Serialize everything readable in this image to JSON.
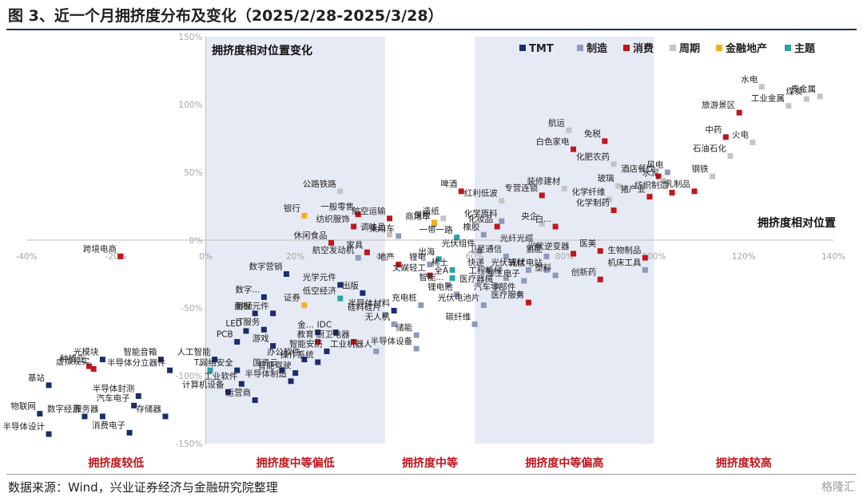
{
  "title": "图 3、近一个月拥挤度分布及变化（2025/2/28-2025/3/28）",
  "source": "数据来源：Wind，兴业证券经济与金融研究院整理",
  "watermark": "格隆汇",
  "chart_data": {
    "type": "scatter",
    "title": "拥挤度相对位置变化",
    "xlabel": "拥挤度相对位置",
    "ylabel": "",
    "xlim": [
      -40,
      140
    ],
    "ylim": [
      -150,
      150
    ],
    "x_ticks": [
      "-40%",
      "-20%",
      "0%",
      "20%",
      "40%",
      "60%",
      "80%",
      "100%",
      "120%",
      "140%"
    ],
    "y_ticks": [
      "150%",
      "100%",
      "50%",
      "0%",
      "-50%",
      "-100%",
      "-150%"
    ],
    "zones": [
      {
        "label": "拥挤度较低",
        "from": -40,
        "to": 0,
        "shade": false
      },
      {
        "label": "拥挤度中等偏低",
        "from": 0,
        "to": 40,
        "shade": true
      },
      {
        "label": "拥挤度中等",
        "from": 40,
        "to": 60,
        "shade": false
      },
      {
        "label": "拥挤度中等偏高",
        "from": 60,
        "to": 100,
        "shade": true
      },
      {
        "label": "拥挤度较高",
        "from": 100,
        "to": 140,
        "shade": false
      }
    ],
    "legend": [
      {
        "name": "TMT",
        "color": "#1b2d6b"
      },
      {
        "name": "制造",
        "color": "#8d9bb8"
      },
      {
        "name": "消费",
        "color": "#c0161d"
      },
      {
        "name": "周期",
        "color": "#c4c4c4"
      },
      {
        "name": "金融地产",
        "color": "#f2b21c"
      },
      {
        "name": "主题",
        "color": "#29a3a3"
      }
    ],
    "series": [
      {
        "name": "TMT",
        "points": [
          {
            "label": "光模块",
            "x": -23,
            "y": -88
          },
          {
            "label": "智能音箱",
            "x": -10,
            "y": -88
          },
          {
            "label": "基站",
            "x": -35,
            "y": -107
          },
          {
            "label": "物联网",
            "x": -37,
            "y": -128
          },
          {
            "label": "数字经济",
            "x": -27,
            "y": -130
          },
          {
            "label": "半导体设计",
            "x": -35,
            "y": -143
          },
          {
            "label": "汽车电子",
            "x": -16,
            "y": -122
          },
          {
            "label": "半导体封测",
            "x": -15,
            "y": -115
          },
          {
            "label": "服务器",
            "x": -23,
            "y": -130
          },
          {
            "label": "存储器",
            "x": -9,
            "y": -130
          },
          {
            "label": "消费电子",
            "x": -17,
            "y": -142
          },
          {
            "label": "半导体分立器件",
            "x": -8,
            "y": -96
          },
          {
            "label": "人工智能",
            "x": 2,
            "y": -88
          },
          {
            "label": "网络安全",
            "x": 7,
            "y": -96
          },
          {
            "label": "工业软件",
            "x": 8,
            "y": -106
          },
          {
            "label": "计算机设备",
            "x": 5,
            "y": -112
          },
          {
            "label": "运营商",
            "x": 11,
            "y": -118
          },
          {
            "label": "数字营销",
            "x": 18,
            "y": -25
          },
          {
            "label": "数字...",
            "x": 13,
            "y": -42
          },
          {
            "label": "面板",
            "x": 11,
            "y": -54
          },
          {
            "label": "射频元件",
            "x": 15,
            "y": -54
          },
          {
            "label": "LED",
            "x": 9,
            "y": -67
          },
          {
            "label": "IT服务",
            "x": 13,
            "y": -66
          },
          {
            "label": "PCB",
            "x": 7,
            "y": -75
          },
          {
            "label": "游戏",
            "x": 15,
            "y": -78
          },
          {
            "label": "办公软件",
            "x": 22,
            "y": -88
          },
          {
            "label": "国资云",
            "x": 17,
            "y": -96
          },
          {
            "label": "智能驾驶",
            "x": 20,
            "y": -98
          },
          {
            "label": "半导体制造",
            "x": 19,
            "y": -104
          },
          {
            "label": "金...",
            "x": 25,
            "y": -68
          },
          {
            "label": "IDC",
            "x": 29,
            "y": -68
          },
          {
            "label": "智能安防",
            "x": 27,
            "y": -82
          },
          {
            "label": "操作系统",
            "x": 25,
            "y": -90
          },
          {
            "label": "出版",
            "x": 35,
            "y": -39
          },
          {
            "label": "光学元件",
            "x": 30,
            "y": -33
          },
          {
            "label": "半导体材料",
            "x": 42,
            "y": -52
          }
        ]
      },
      {
        "name": "制造",
        "points": [
          {
            "label": "乘用车",
            "x": 43,
            "y": 3
          },
          {
            "label": "商用车",
            "x": 51,
            "y": 12
          },
          {
            "label": "航空发动机",
            "x": 34,
            "y": -13
          },
          {
            "label": "锂电",
            "x": 50,
            "y": -18
          },
          {
            "label": "智能...",
            "x": 54,
            "y": -33
          },
          {
            "label": "锂电池",
            "x": 56,
            "y": -40
          },
          {
            "label": "硅料硅片",
            "x": 40,
            "y": -55
          },
          {
            "label": "无人机",
            "x": 42,
            "y": -62
          },
          {
            "label": "充电桩",
            "x": 48,
            "y": -48
          },
          {
            "label": "储能",
            "x": 47,
            "y": -70
          },
          {
            "label": "半导体设备",
            "x": 47,
            "y": -80
          },
          {
            "label": "工业机器人",
            "x": 38,
            "y": -82
          },
          {
            "label": "化学原料",
            "x": 66,
            "y": 14
          },
          {
            "label": "橡胶",
            "x": 62,
            "y": 4
          },
          {
            "label": "光伏组件",
            "x": 61,
            "y": -8
          },
          {
            "label": "卫星通信",
            "x": 67,
            "y": -12
          },
          {
            "label": "氢能",
            "x": 76,
            "y": -12
          },
          {
            "label": "光纤光缆",
            "x": 74,
            "y": -4
          },
          {
            "label": "快递",
            "x": 63,
            "y": -22
          },
          {
            "label": "工程机械",
            "x": 67,
            "y": -28
          },
          {
            "label": "光伏辅材",
            "x": 72,
            "y": -22
          },
          {
            "label": "光伏电站",
            "x": 76,
            "y": -22
          },
          {
            "label": "医疗器械",
            "x": 65,
            "y": -34
          },
          {
            "label": "军工电子",
            "x": 71,
            "y": -30
          },
          {
            "label": "塑料",
            "x": 78,
            "y": -26
          },
          {
            "label": "汽车零部件",
            "x": 70,
            "y": -40
          },
          {
            "label": "光伏电池片",
            "x": 62,
            "y": -48
          },
          {
            "label": "碳纤维",
            "x": 60,
            "y": -62
          },
          {
            "label": "机床工具",
            "x": 98,
            "y": -22
          },
          {
            "label": "风电",
            "x": 103,
            "y": 50
          }
        ]
      },
      {
        "name": "消费",
        "points": [
          {
            "label": "跨境电商",
            "x": -19,
            "y": -12
          },
          {
            "label": "种植业",
            "x": -26,
            "y": -93
          },
          {
            "label": "虚拟现实",
            "x": -25,
            "y": -95
          },
          {
            "label": "一般零售",
            "x": 34,
            "y": 19
          },
          {
            "label": "纺织服饰",
            "x": 33,
            "y": 10
          },
          {
            "label": "航空运输",
            "x": 41,
            "y": 16
          },
          {
            "label": "休闲食品",
            "x": 28,
            "y": -2
          },
          {
            "label": "啤酒",
            "x": 57,
            "y": 36
          },
          {
            "label": "地产",
            "x": 43,
            "y": -18
          },
          {
            "label": "文娱轻工",
            "x": 50,
            "y": -26
          },
          {
            "label": "家具",
            "x": 36,
            "y": -9
          },
          {
            "label": "厨卫电器",
            "x": 33,
            "y": -75
          },
          {
            "label": "教育",
            "x": 25,
            "y": -75
          },
          {
            "label": "专营连锁",
            "x": 75,
            "y": 33
          },
          {
            "label": "白...",
            "x": 78,
            "y": 10
          },
          {
            "label": "化妆品",
            "x": 65,
            "y": 10
          },
          {
            "label": "白色家电",
            "x": 82,
            "y": 67
          },
          {
            "label": "免税",
            "x": 89,
            "y": 73
          },
          {
            "label": "酒店餐饮",
            "x": 101,
            "y": 47
          },
          {
            "label": "猪产业",
            "x": 99,
            "y": 32
          },
          {
            "label": "化学制药",
            "x": 91,
            "y": 22
          },
          {
            "label": "乳制品",
            "x": 109,
            "y": 36
          },
          {
            "label": "纺织制造",
            "x": 104,
            "y": 35
          },
          {
            "label": "中药",
            "x": 116,
            "y": 76
          },
          {
            "label": "旅游景区",
            "x": 119,
            "y": 94
          },
          {
            "label": "医美",
            "x": 88,
            "y": -8
          },
          {
            "label": "光伏逆变器",
            "x": 82,
            "y": -10
          },
          {
            "label": "生物制品",
            "x": 98,
            "y": -13
          },
          {
            "label": "创新药",
            "x": 88,
            "y": -29
          },
          {
            "label": "医疗服务",
            "x": 72,
            "y": -46
          }
        ]
      },
      {
        "name": "周期",
        "points": [
          {
            "label": "公路铁路",
            "x": 30,
            "y": 36
          },
          {
            "label": "造纸",
            "x": 53,
            "y": 16
          },
          {
            "label": "调味品",
            "x": 41,
            "y": 4
          },
          {
            "label": "红利低波",
            "x": 66,
            "y": 29
          },
          {
            "label": "装修建材",
            "x": 80,
            "y": 38
          },
          {
            "label": "航运",
            "x": 81,
            "y": 81
          },
          {
            "label": "化肥农药",
            "x": 91,
            "y": 56
          },
          {
            "label": "玻璃",
            "x": 92,
            "y": 40
          },
          {
            "label": "化学纤维",
            "x": 90,
            "y": 30
          },
          {
            "label": "水泥",
            "x": 102,
            "y": 44
          },
          {
            "label": "石油石化",
            "x": 117,
            "y": 62
          },
          {
            "label": "钢铁",
            "x": 113,
            "y": 47
          },
          {
            "label": "火电",
            "x": 122,
            "y": 72
          },
          {
            "label": "水电",
            "x": 124,
            "y": 113
          },
          {
            "label": "煤炭",
            "x": 134,
            "y": 104
          },
          {
            "label": "贵金属",
            "x": 137,
            "y": 106
          },
          {
            "label": "工业金属",
            "x": 130,
            "y": 99
          },
          {
            "label": "央企",
            "x": 75,
            "y": 12
          }
        ]
      },
      {
        "name": "金融地产",
        "points": [
          {
            "label": "银行",
            "x": 22,
            "y": 18
          },
          {
            "label": "保险",
            "x": 51,
            "y": 13
          },
          {
            "label": "证券",
            "x": 22,
            "y": -48
          }
        ]
      },
      {
        "name": "主题",
        "points": [
          {
            "label": "一带一路",
            "x": 56,
            "y": 2
          },
          {
            "label": "出海",
            "x": 52,
            "y": -14
          },
          {
            "label": "稀土",
            "x": 55,
            "y": -22
          },
          {
            "label": "全A",
            "x": 55,
            "y": -28
          },
          {
            "label": "低空经济",
            "x": 30,
            "y": -43
          },
          {
            "label": "T...",
            "x": 1,
            "y": -96
          }
        ]
      }
    ]
  }
}
